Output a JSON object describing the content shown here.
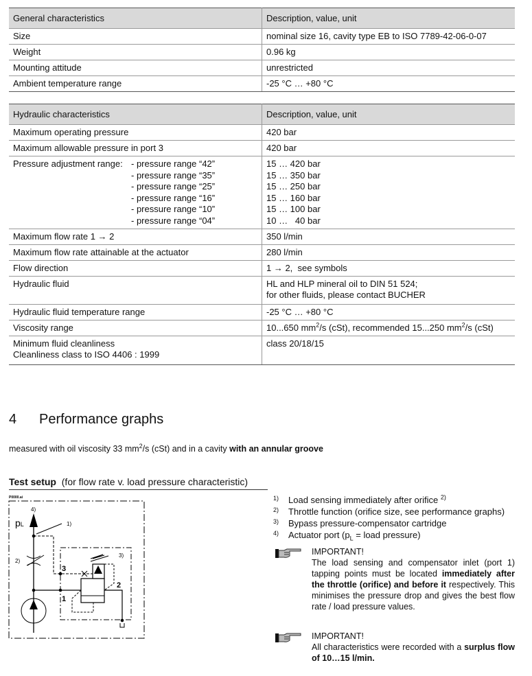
{
  "general_table": {
    "headers": [
      "General characteristics",
      "Description, value, unit"
    ],
    "rows": [
      [
        "Size",
        "nominal size 16, cavity type EB to ISO 7789-42-06-0-07"
      ],
      [
        "Weight",
        "0.96 kg"
      ],
      [
        "Mounting attitude",
        "unrestricted"
      ],
      [
        "Ambient temperature range",
        "-25 °C … +80 °C"
      ]
    ]
  },
  "hydraulic_table": {
    "headers": [
      "Hydraulic characteristics",
      "Description, value, unit"
    ],
    "max_op_pressure": [
      "Maximum operating pressure",
      "420 bar"
    ],
    "max_port3": [
      "Maximum allowable pressure in port 3",
      "420 bar"
    ],
    "pressure_adj_label": "Pressure adjustment range:",
    "pressure_ranges": [
      [
        "- pressure range “42”",
        "15 … 420 bar"
      ],
      [
        "- pressure range “35”",
        "15 … 350 bar"
      ],
      [
        "- pressure range “25”",
        "15 … 250 bar"
      ],
      [
        "- pressure range “16”",
        "15 … 160 bar"
      ],
      [
        "- pressure range “10”",
        "15 … 100 bar"
      ],
      [
        "- pressure range “04”",
        "10 …   40 bar"
      ]
    ],
    "max_flow": [
      "Maximum flow rate 1 → 2",
      "350 l/min"
    ],
    "max_flow_actuator": [
      "Maximum flow rate attainable at the actuator",
      "280 l/min"
    ],
    "flow_direction": [
      "Flow direction",
      "1 → 2,  see symbols"
    ],
    "fluid": {
      "label": "Hydraulic fluid",
      "line1": "HL and HLP mineral oil to DIN 51 524;",
      "line2": "for other fluids, please contact BUCHER"
    },
    "fluid_temp": [
      "Hydraulic fluid temperature range",
      "-25 °C … +80 °C"
    ],
    "viscosity": {
      "label": "Viscosity range",
      "a": "10...650 mm",
      "b": "/s (cSt), recommended 15...250 mm",
      "c": "/s (cSt)",
      "sup": "2"
    },
    "cleanliness": {
      "label1": "Minimum fluid cleanliness",
      "label2": "Cleanliness class to ISO 4406 : 1999",
      "value": "class 20/18/15"
    }
  },
  "section": {
    "number": "4",
    "title": "Performance graphs"
  },
  "measured": {
    "a": "measured with oil viscosity 33 mm",
    "sup": "2",
    "b": "/s (cSt) and in a cavity ",
    "bold": "with an annular groove"
  },
  "test_setup": {
    "title": "Test setup",
    "subtitle": "(for flow rate v. load pressure characteristic)"
  },
  "diagram": {
    "file": "P0000.ai",
    "l4": "4)",
    "pl": "p",
    "pl_sub": "L",
    "l1": "1)",
    "l2": "2)",
    "l3": "3)",
    "p3": "3",
    "p1": "1",
    "p2": "2"
  },
  "notes": [
    {
      "key": "1)",
      "text": "Load sensing immediately after orifice ",
      "sup": "2)"
    },
    {
      "key": "2)",
      "text": "Throttle function (orifice size, see performance graphs)"
    },
    {
      "key": "3)",
      "text": "Bypass pressure-compensator cartridge"
    },
    {
      "key": "4)",
      "text": "Actuator port (p",
      "sub": "L",
      "tail": " = load pressure)"
    }
  ],
  "important1": {
    "title": "IMPORTANT!",
    "a": "The load sensing and compensator inlet (port 1) tapping points must be located ",
    "b": "immediately after the throttle (orifice) and before it",
    "c": " respectively. This minimises the pressure drop and gives the best flow rate / load pressure values."
  },
  "important2": {
    "title": "IMPORTANT!",
    "a": "All characteristics were recorded with a ",
    "b": "surplus flow of 10…15 l/min."
  }
}
